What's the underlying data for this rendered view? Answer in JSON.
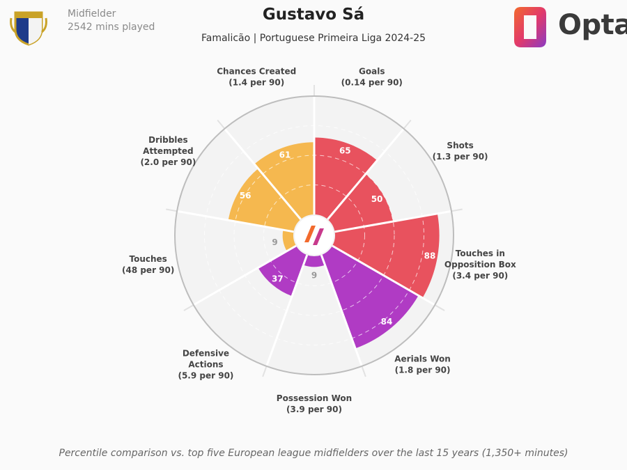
{
  "header": {
    "position": "Midfielder",
    "minutes": "2542 mins played",
    "player": "Gustavo Sá",
    "subtitle": "Famalicão | Portuguese Primeira Liga 2024-25",
    "brand": "Opta"
  },
  "colors": {
    "attacking": "#e8525e",
    "possession": "#f5b84f",
    "defending": "#b03bc4",
    "gray_value": "#999999"
  },
  "chart_data": {
    "type": "polar-bar",
    "scale": [
      0,
      100
    ],
    "rings": [
      25,
      50,
      75
    ],
    "segments": [
      {
        "name": "Goals",
        "per90": "(0.14 per 90)",
        "value": 65,
        "group": "attacking"
      },
      {
        "name": "Shots",
        "per90": "(1.3 per 90)",
        "value": 50,
        "group": "attacking"
      },
      {
        "name": "Touches in Opposition Box",
        "per90": "(3.4 per 90)",
        "value": 88,
        "group": "attacking"
      },
      {
        "name": "Aerials Won",
        "per90": "(1.8 per 90)",
        "value": 84,
        "group": "defending"
      },
      {
        "name": "Possession Won",
        "per90": "(3.9 per 90)",
        "value": 9,
        "group": "defending"
      },
      {
        "name": "Defensive Actions",
        "per90": "(5.9 per 90)",
        "value": 37,
        "group": "defending"
      },
      {
        "name": "Touches",
        "per90": "(48 per 90)",
        "value": 9,
        "group": "possession"
      },
      {
        "name": "Dribbles Attempted",
        "per90": "(2.0 per 90)",
        "value": 56,
        "group": "possession"
      },
      {
        "name": "Chances Created",
        "per90": "(1.4 per 90)",
        "value": 61,
        "group": "possession"
      }
    ]
  },
  "footer": {
    "caption": "Percentile comparison vs. top five European league midfielders over the last 15 years (1,350+ minutes)"
  }
}
